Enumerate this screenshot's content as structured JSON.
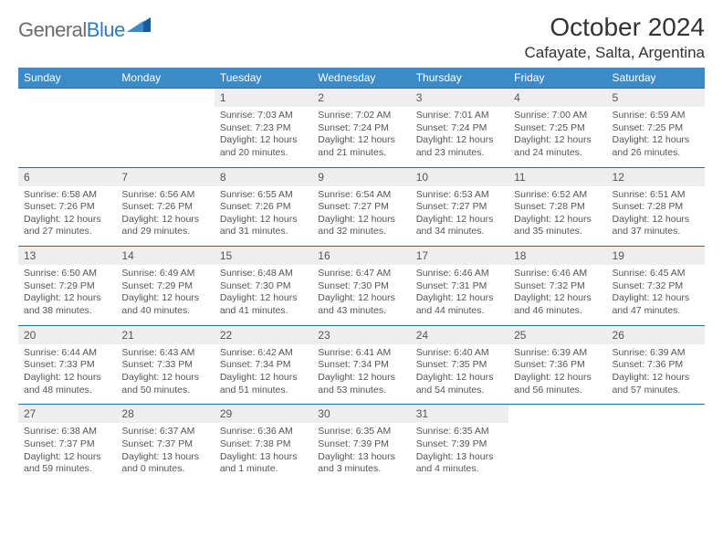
{
  "logo": {
    "part1": "General",
    "part2": "Blue"
  },
  "title": "October 2024",
  "location": "Cafayate, Salta, Argentina",
  "colors": {
    "header_bg": "#3b8bc9",
    "header_text": "#ffffff",
    "daynum_bg": "#eeeeee",
    "border": "#2b6ca5",
    "body_text": "#555555",
    "logo_gray": "#6b6b6b",
    "logo_blue": "#2b7bbf"
  },
  "day_headers": [
    "Sunday",
    "Monday",
    "Tuesday",
    "Wednesday",
    "Thursday",
    "Friday",
    "Saturday"
  ],
  "weeks": [
    {
      "nums": [
        "",
        "",
        "1",
        "2",
        "3",
        "4",
        "5"
      ],
      "cells": [
        null,
        null,
        {
          "sunrise": "Sunrise: 7:03 AM",
          "sunset": "Sunset: 7:23 PM",
          "day1": "Daylight: 12 hours",
          "day2": "and 20 minutes."
        },
        {
          "sunrise": "Sunrise: 7:02 AM",
          "sunset": "Sunset: 7:24 PM",
          "day1": "Daylight: 12 hours",
          "day2": "and 21 minutes."
        },
        {
          "sunrise": "Sunrise: 7:01 AM",
          "sunset": "Sunset: 7:24 PM",
          "day1": "Daylight: 12 hours",
          "day2": "and 23 minutes."
        },
        {
          "sunrise": "Sunrise: 7:00 AM",
          "sunset": "Sunset: 7:25 PM",
          "day1": "Daylight: 12 hours",
          "day2": "and 24 minutes."
        },
        {
          "sunrise": "Sunrise: 6:59 AM",
          "sunset": "Sunset: 7:25 PM",
          "day1": "Daylight: 12 hours",
          "day2": "and 26 minutes."
        }
      ]
    },
    {
      "nums": [
        "6",
        "7",
        "8",
        "9",
        "10",
        "11",
        "12"
      ],
      "cells": [
        {
          "sunrise": "Sunrise: 6:58 AM",
          "sunset": "Sunset: 7:26 PM",
          "day1": "Daylight: 12 hours",
          "day2": "and 27 minutes."
        },
        {
          "sunrise": "Sunrise: 6:56 AM",
          "sunset": "Sunset: 7:26 PM",
          "day1": "Daylight: 12 hours",
          "day2": "and 29 minutes."
        },
        {
          "sunrise": "Sunrise: 6:55 AM",
          "sunset": "Sunset: 7:26 PM",
          "day1": "Daylight: 12 hours",
          "day2": "and 31 minutes."
        },
        {
          "sunrise": "Sunrise: 6:54 AM",
          "sunset": "Sunset: 7:27 PM",
          "day1": "Daylight: 12 hours",
          "day2": "and 32 minutes."
        },
        {
          "sunrise": "Sunrise: 6:53 AM",
          "sunset": "Sunset: 7:27 PM",
          "day1": "Daylight: 12 hours",
          "day2": "and 34 minutes."
        },
        {
          "sunrise": "Sunrise: 6:52 AM",
          "sunset": "Sunset: 7:28 PM",
          "day1": "Daylight: 12 hours",
          "day2": "and 35 minutes."
        },
        {
          "sunrise": "Sunrise: 6:51 AM",
          "sunset": "Sunset: 7:28 PM",
          "day1": "Daylight: 12 hours",
          "day2": "and 37 minutes."
        }
      ]
    },
    {
      "nums": [
        "13",
        "14",
        "15",
        "16",
        "17",
        "18",
        "19"
      ],
      "cells": [
        {
          "sunrise": "Sunrise: 6:50 AM",
          "sunset": "Sunset: 7:29 PM",
          "day1": "Daylight: 12 hours",
          "day2": "and 38 minutes."
        },
        {
          "sunrise": "Sunrise: 6:49 AM",
          "sunset": "Sunset: 7:29 PM",
          "day1": "Daylight: 12 hours",
          "day2": "and 40 minutes."
        },
        {
          "sunrise": "Sunrise: 6:48 AM",
          "sunset": "Sunset: 7:30 PM",
          "day1": "Daylight: 12 hours",
          "day2": "and 41 minutes."
        },
        {
          "sunrise": "Sunrise: 6:47 AM",
          "sunset": "Sunset: 7:30 PM",
          "day1": "Daylight: 12 hours",
          "day2": "and 43 minutes."
        },
        {
          "sunrise": "Sunrise: 6:46 AM",
          "sunset": "Sunset: 7:31 PM",
          "day1": "Daylight: 12 hours",
          "day2": "and 44 minutes."
        },
        {
          "sunrise": "Sunrise: 6:46 AM",
          "sunset": "Sunset: 7:32 PM",
          "day1": "Daylight: 12 hours",
          "day2": "and 46 minutes."
        },
        {
          "sunrise": "Sunrise: 6:45 AM",
          "sunset": "Sunset: 7:32 PM",
          "day1": "Daylight: 12 hours",
          "day2": "and 47 minutes."
        }
      ]
    },
    {
      "nums": [
        "20",
        "21",
        "22",
        "23",
        "24",
        "25",
        "26"
      ],
      "cells": [
        {
          "sunrise": "Sunrise: 6:44 AM",
          "sunset": "Sunset: 7:33 PM",
          "day1": "Daylight: 12 hours",
          "day2": "and 48 minutes."
        },
        {
          "sunrise": "Sunrise: 6:43 AM",
          "sunset": "Sunset: 7:33 PM",
          "day1": "Daylight: 12 hours",
          "day2": "and 50 minutes."
        },
        {
          "sunrise": "Sunrise: 6:42 AM",
          "sunset": "Sunset: 7:34 PM",
          "day1": "Daylight: 12 hours",
          "day2": "and 51 minutes."
        },
        {
          "sunrise": "Sunrise: 6:41 AM",
          "sunset": "Sunset: 7:34 PM",
          "day1": "Daylight: 12 hours",
          "day2": "and 53 minutes."
        },
        {
          "sunrise": "Sunrise: 6:40 AM",
          "sunset": "Sunset: 7:35 PM",
          "day1": "Daylight: 12 hours",
          "day2": "and 54 minutes."
        },
        {
          "sunrise": "Sunrise: 6:39 AM",
          "sunset": "Sunset: 7:36 PM",
          "day1": "Daylight: 12 hours",
          "day2": "and 56 minutes."
        },
        {
          "sunrise": "Sunrise: 6:39 AM",
          "sunset": "Sunset: 7:36 PM",
          "day1": "Daylight: 12 hours",
          "day2": "and 57 minutes."
        }
      ]
    },
    {
      "nums": [
        "27",
        "28",
        "29",
        "30",
        "31",
        "",
        ""
      ],
      "cells": [
        {
          "sunrise": "Sunrise: 6:38 AM",
          "sunset": "Sunset: 7:37 PM",
          "day1": "Daylight: 12 hours",
          "day2": "and 59 minutes."
        },
        {
          "sunrise": "Sunrise: 6:37 AM",
          "sunset": "Sunset: 7:37 PM",
          "day1": "Daylight: 13 hours",
          "day2": "and 0 minutes."
        },
        {
          "sunrise": "Sunrise: 6:36 AM",
          "sunset": "Sunset: 7:38 PM",
          "day1": "Daylight: 13 hours",
          "day2": "and 1 minute."
        },
        {
          "sunrise": "Sunrise: 6:35 AM",
          "sunset": "Sunset: 7:39 PM",
          "day1": "Daylight: 13 hours",
          "day2": "and 3 minutes."
        },
        {
          "sunrise": "Sunrise: 6:35 AM",
          "sunset": "Sunset: 7:39 PM",
          "day1": "Daylight: 13 hours",
          "day2": "and 4 minutes."
        },
        null,
        null
      ]
    }
  ]
}
